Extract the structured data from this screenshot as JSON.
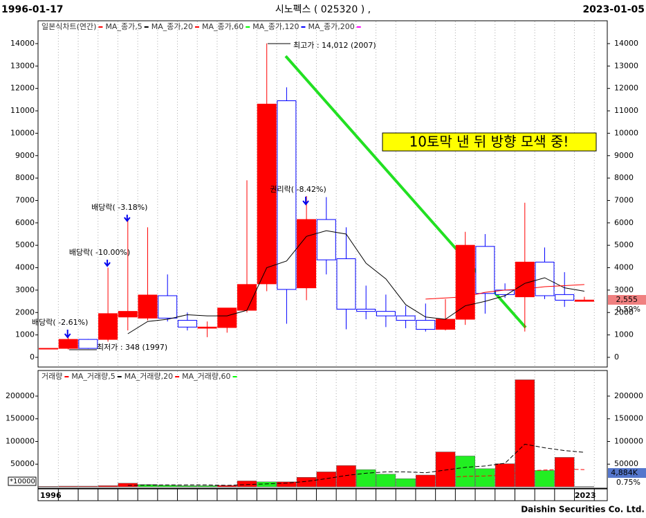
{
  "header": {
    "start_date": "1996-01-17",
    "title": "시노펙스 ( 025320 ) ,",
    "end_date": "2023-01-05"
  },
  "chart_data": [
    {
      "type": "candlestick",
      "name": "일본식차트(연간)",
      "color": "#ff0000",
      "down_color": "#0000ff",
      "categories": [
        "1996",
        null,
        null,
        null,
        null,
        null,
        null,
        null,
        null,
        null,
        null,
        null,
        null,
        null,
        null,
        null,
        null,
        null,
        null,
        null,
        null,
        null,
        null,
        null,
        null,
        null,
        null,
        "2023"
      ],
      "open": [
        380,
        400,
        800,
        800,
        1800,
        1750,
        2750,
        1650,
        1300,
        1330,
        2100,
        3280,
        11450,
        3100,
        6150,
        4400,
        2150,
        2050,
        1850,
        1650,
        1250,
        1700,
        4950,
        3000,
        2700,
        4250,
        2800,
        2500
      ],
      "high": [
        400,
        960,
        820,
        4000,
        6200,
        5800,
        3700,
        2000,
        1600,
        2200,
        7900,
        14012,
        12050,
        7200,
        7150,
        5800,
        3200,
        2800,
        2300,
        2400,
        2600,
        5600,
        5500,
        3300,
        6900,
        4900,
        3800,
        2700
      ],
      "low": [
        370,
        348,
        380,
        700,
        1200,
        1650,
        1600,
        1200,
        900,
        1100,
        2000,
        2950,
        1500,
        2550,
        3700,
        1250,
        1700,
        1350,
        1300,
        1150,
        1200,
        1450,
        1950,
        2650,
        1150,
        2600,
        2250,
        2500
      ],
      "close": [
        400,
        800,
        400,
        1950,
        2050,
        2780,
        1750,
        1350,
        1350,
        2200,
        3250,
        11300,
        3030,
        6150,
        4350,
        2150,
        2050,
        1850,
        1650,
        1250,
        1700,
        5000,
        2850,
        2800,
        4250,
        2750,
        2550,
        2555
      ],
      "series": [
        {
          "name": "MA_종가,5",
          "color": "#000000",
          "values": [
            null,
            null,
            null,
            null,
            1050,
            1600,
            1700,
            1900,
            1850,
            1850,
            2100,
            4000,
            4300,
            5400,
            5650,
            5500,
            4200,
            3500,
            2350,
            1800,
            1700,
            2300,
            2500,
            2750,
            3300,
            3550,
            3100,
            2950
          ]
        },
        {
          "name": "MA_종가,20",
          "color": "#ff0000",
          "values": [
            null,
            null,
            null,
            null,
            null,
            null,
            null,
            null,
            null,
            null,
            null,
            null,
            null,
            null,
            null,
            null,
            null,
            null,
            null,
            2600,
            2650,
            2700,
            2900,
            3000,
            3050,
            3150,
            3200,
            3250
          ]
        },
        {
          "name": "MA_종가,60",
          "color": "#00ff00",
          "values": [
            null,
            null,
            null,
            null,
            null,
            null,
            null,
            null,
            null,
            null,
            null,
            null,
            null,
            null,
            null,
            null,
            null,
            null,
            null,
            null,
            null,
            null,
            null,
            null,
            null,
            null,
            null,
            null
          ]
        },
        {
          "name": "MA_종가,120",
          "color": "#0000ff",
          "values": [
            null,
            null,
            null,
            null,
            null,
            null,
            null,
            null,
            null,
            null,
            null,
            null,
            null,
            null,
            null,
            null,
            null,
            null,
            null,
            null,
            null,
            null,
            null,
            null,
            null,
            null,
            null,
            null
          ]
        },
        {
          "name": "MA_종가,200",
          "color": "#ff00ff",
          "values": [
            null,
            null,
            null,
            null,
            null,
            null,
            null,
            null,
            null,
            null,
            null,
            null,
            null,
            null,
            null,
            null,
            null,
            null,
            null,
            null,
            null,
            null,
            null,
            null,
            null,
            null,
            null,
            null
          ]
        }
      ],
      "ylim": [
        -433,
        14957
      ],
      "yticks": [
        0,
        1000,
        2000,
        3000,
        4000,
        5000,
        6000,
        7000,
        8000,
        9000,
        10000,
        11000,
        12000,
        13000,
        14000
      ],
      "high_label": "최고가 : 14,012 (2007)",
      "low_label": "최저가 : 348 (1997)",
      "events": [
        "배당락( -2.61%)",
        "배당락( -10.00%)",
        "배당락( -3.18%)",
        "권리락( -8.42%)"
      ],
      "note": "10토막 낸 뒤 방향 모색 중!",
      "last_label": "2,555",
      "change_label": "0.59%"
    },
    {
      "type": "bar",
      "name": "거래량",
      "color": "#ff0000",
      "categories": [
        "1996",
        null,
        null,
        null,
        null,
        null,
        null,
        null,
        null,
        null,
        null,
        null,
        null,
        null,
        null,
        null,
        null,
        null,
        null,
        null,
        null,
        null,
        null,
        null,
        null,
        null,
        null,
        "2023"
      ],
      "values": [
        1000,
        1500,
        1500,
        2500,
        8000,
        5000,
        3500,
        2500,
        2500,
        3000,
        13000,
        11000,
        11000,
        21000,
        33000,
        47000,
        38000,
        28000,
        18000,
        26000,
        77000,
        68000,
        40000,
        51000,
        236000,
        36000,
        65000,
        700
      ],
      "colors": [
        "#ff0000",
        "#ff0000",
        "#ff0000",
        "#ff0000",
        "#ff0000",
        "#22ee22",
        "#22ee22",
        "#22ee22",
        "#22ee22",
        "#ff0000",
        "#ff0000",
        "#22ee22",
        "#ff0000",
        "#ff0000",
        "#ff0000",
        "#ff0000",
        "#22ee22",
        "#22ee22",
        "#22ee22",
        "#ff0000",
        "#ff0000",
        "#22ee22",
        "#22ee22",
        "#ff0000",
        "#ff0000",
        "#22ee22",
        "#ff0000",
        "#22ee22"
      ],
      "series": [
        {
          "name": "MA_거래량,5",
          "color": "#000000",
          "values": [
            null,
            null,
            null,
            null,
            3000,
            3800,
            4200,
            4300,
            4300,
            3300,
            4900,
            6500,
            8200,
            12000,
            18000,
            25000,
            30000,
            33000,
            33000,
            31000,
            37000,
            43000,
            46000,
            52000,
            94000,
            86000,
            80000,
            76000
          ]
        },
        {
          "name": "MA_거래량,20",
          "color": "#ff0000",
          "values": [
            null,
            null,
            null,
            null,
            null,
            null,
            null,
            null,
            null,
            null,
            null,
            null,
            null,
            null,
            null,
            null,
            null,
            null,
            null,
            18000,
            21000,
            23000,
            24000,
            26000,
            35000,
            37000,
            39000,
            38000
          ]
        },
        {
          "name": "MA_거래량,60",
          "color": "#00ff00",
          "values": [
            null,
            null,
            null,
            null,
            null,
            null,
            null,
            null,
            null,
            null,
            null,
            null,
            null,
            null,
            null,
            null,
            null,
            null,
            null,
            null,
            null,
            null,
            null,
            null,
            null,
            null,
            null,
            null
          ]
        }
      ],
      "ylim": [
        0,
        253400
      ],
      "yticks": [
        50000,
        100000,
        150000,
        200000
      ],
      "unit_label": "*10000",
      "last_label": "4,884K",
      "change_label": "0.75%"
    }
  ],
  "footer": {
    "credit": "Daishin Securities Co. Ltd."
  }
}
